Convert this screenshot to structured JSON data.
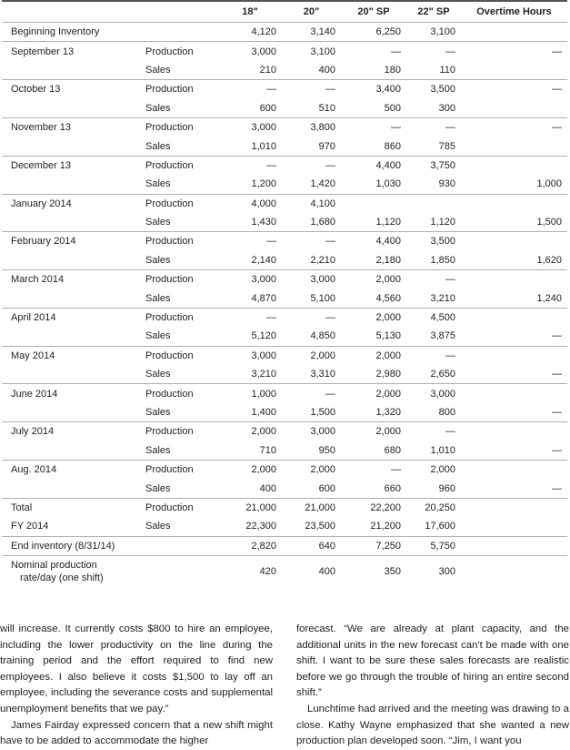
{
  "table": {
    "columns": [
      null,
      null,
      "18\"",
      "20\"",
      "20\" SP",
      "22\" SP",
      "Overtime Hours"
    ],
    "groups": [
      [
        [
          "Beginning Inventory",
          null,
          "4,120",
          "3,140",
          "6,250",
          "3,100",
          null
        ]
      ],
      [
        [
          "September 13",
          "Production",
          "3,000",
          "3,100",
          "—",
          "—",
          "—"
        ],
        [
          null,
          "Sales",
          "210",
          "400",
          "180",
          "110",
          null
        ]
      ],
      [
        [
          "October 13",
          "Production",
          "—",
          "—",
          "3,400",
          "3,500",
          "—"
        ],
        [
          null,
          "Sales",
          "600",
          "510",
          "500",
          "300",
          null
        ]
      ],
      [
        [
          "November 13",
          "Production",
          "3,000",
          "3,800",
          "—",
          "—",
          "—"
        ],
        [
          null,
          "Sales",
          "1,010",
          "970",
          "860",
          "785",
          null
        ]
      ],
      [
        [
          "December 13",
          "Production",
          "—",
          "—",
          "4,400",
          "3,750",
          null
        ],
        [
          null,
          "Sales",
          "1,200",
          "1,420",
          "1,030",
          "930",
          "1,000"
        ]
      ],
      [
        [
          "January 2014",
          "Production",
          "4,000",
          "4,100",
          null,
          null,
          null
        ],
        [
          null,
          "Sales",
          "1,430",
          "1,680",
          "1,120",
          "1,120",
          "1,500"
        ]
      ],
      [
        [
          "February 2014",
          "Production",
          "—",
          "—",
          "4,400",
          "3,500",
          null
        ],
        [
          null,
          "Sales",
          "2,140",
          "2,210",
          "2,180",
          "1,850",
          "1,620"
        ]
      ],
      [
        [
          "March 2014",
          "Production",
          "3,000",
          "3,000",
          "2,000",
          "—",
          null
        ],
        [
          null,
          "Sales",
          "4,870",
          "5,100",
          "4,560",
          "3,210",
          "1,240"
        ]
      ],
      [
        [
          "April 2014",
          "Production",
          "—",
          "—",
          "2,000",
          "4,500",
          null
        ],
        [
          null,
          "Sales",
          "5,120",
          "4,850",
          "5,130",
          "3,875",
          "—"
        ]
      ],
      [
        [
          "May 2014",
          "Production",
          "3,000",
          "2,000",
          "2,000",
          "—",
          null
        ],
        [
          null,
          "Sales",
          "3,210",
          "3,310",
          "2,980",
          "2,650",
          "—"
        ]
      ],
      [
        [
          "June 2014",
          "Production",
          "1,000",
          "—",
          "2,000",
          "3,000",
          null
        ],
        [
          null,
          "Sales",
          "1,400",
          "1,500",
          "1,320",
          "800",
          "—"
        ]
      ],
      [
        [
          "July 2014",
          "Production",
          "2,000",
          "3,000",
          "2,000",
          "—",
          null
        ],
        [
          null,
          "Sales",
          "710",
          "950",
          "680",
          "1,010",
          "—"
        ]
      ],
      [
        [
          "Aug. 2014",
          "Production",
          "2,000",
          "2,000",
          "—",
          "2,000",
          null
        ],
        [
          null,
          "Sales",
          "400",
          "600",
          "660",
          "960",
          "—"
        ]
      ],
      [
        [
          "Total",
          "Production",
          "21,000",
          "21,000",
          "22,200",
          "20,250",
          null
        ],
        [
          "FY 2014",
          "Sales",
          "22,300",
          "23,500",
          "21,200",
          "17,600",
          null
        ]
      ],
      [
        [
          "End inventory (8/31/14)",
          null,
          "2,820",
          "640",
          "7,250",
          "5,750",
          null
        ]
      ],
      [
        [
          "Nominal production rate/day (one shift)",
          null,
          "420",
          "400",
          "350",
          "300",
          null
        ]
      ]
    ]
  },
  "text": {
    "left": [
      "will increase. It currently costs $800 to hire an employee, including the lower productivity on the line during the training period and the effort required to find new employees. I also believe it costs $1,500 to lay off an employee, including the severance costs and supplemental unemployment benefits that we pay.”",
      "James Fairday expressed concern that a new shift might have to be added to accommodate the higher"
    ],
    "right": [
      "forecast. “We are already at plant capacity, and the additional units in the new forecast can't be made with one shift. I want to be sure these sales forecasts are realistic before we go through the trouble of hiring an entire second shift.”",
      "Lunchtime had arrived and the meeting was drawing to a close. Kathy Wayne emphasized that she wanted a new production plan developed soon. “Jim, I want you"
    ]
  }
}
